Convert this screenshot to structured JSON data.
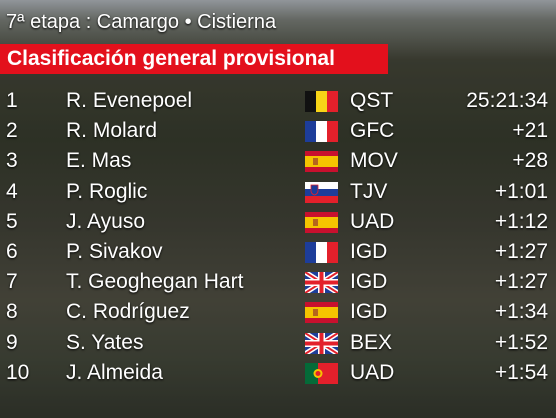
{
  "header": {
    "stage": "7ª etapa : Camargo • Cistierna",
    "title": "Clasificación general provisional"
  },
  "table": {
    "rows": [
      [
        "1",
        "R. Evenepoel",
        "QST",
        "25:21:34"
      ],
      [
        "2",
        "R. Molard",
        "GFC",
        "+21"
      ],
      [
        "3",
        "E. Mas",
        "MOV",
        "+28"
      ],
      [
        "4",
        "P. Roglic",
        "TJV",
        "+1:01"
      ],
      [
        "5",
        "J. Ayuso",
        "UAD",
        "+1:12"
      ],
      [
        "6",
        "P. Sivakov",
        "IGD",
        "+1:27"
      ],
      [
        "7",
        "T. Geoghegan Hart",
        "IGD",
        "+1:27"
      ],
      [
        "8",
        "C. Rodríguez",
        "IGD",
        "+1:34"
      ],
      [
        "9",
        "S. Yates",
        "BEX",
        "+1:52"
      ],
      [
        "10",
        "J. Almeida",
        "UAD",
        "+1:54"
      ]
    ]
  }
}
